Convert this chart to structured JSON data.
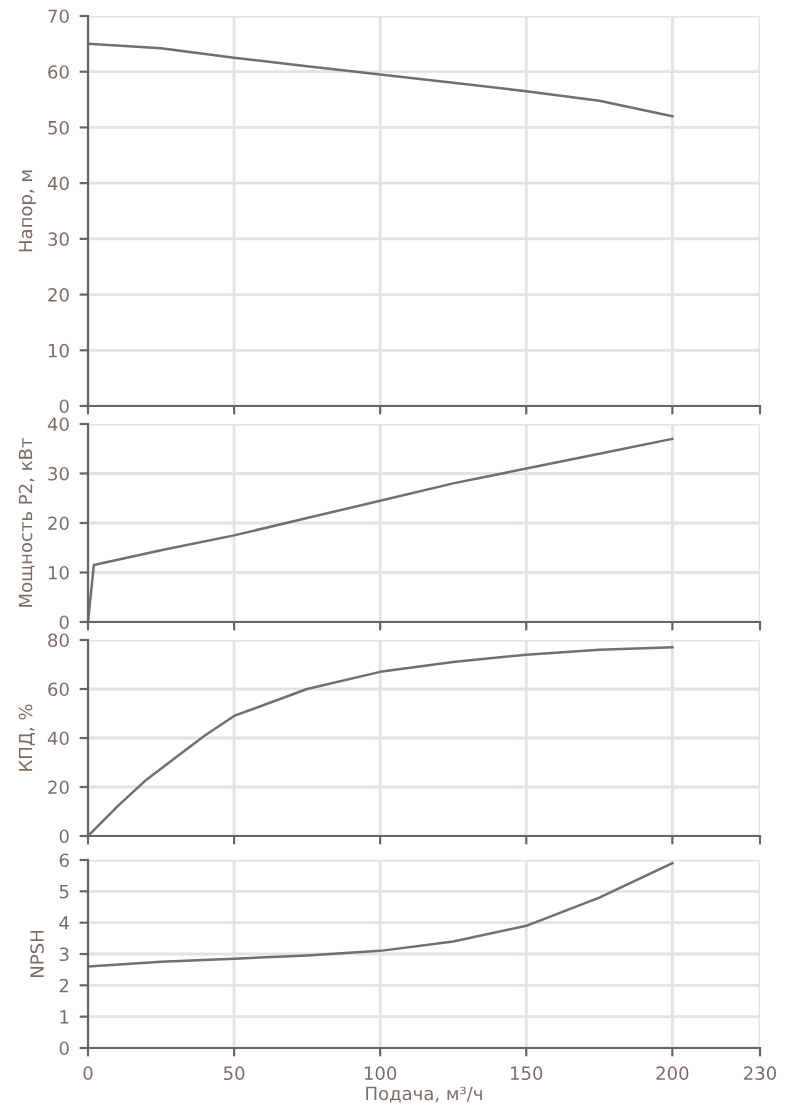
{
  "chart_data": [
    {
      "type": "line",
      "ylabel": "Напор, м",
      "x": [
        0,
        25,
        50,
        75,
        100,
        125,
        150,
        175,
        200
      ],
      "series": [
        {
          "color": "#707070",
          "values": [
            65,
            64.2,
            62.5,
            61,
            59.5,
            58,
            56.5,
            54.8,
            52
          ]
        }
      ],
      "xlim": [
        0,
        230
      ],
      "xticks": [
        0,
        50,
        100,
        150,
        200,
        230
      ],
      "ylim": [
        0,
        70
      ],
      "yticks": [
        0,
        10,
        20,
        30,
        40,
        50,
        60,
        70
      ],
      "grid": true,
      "tick_labels": "y"
    },
    {
      "type": "line",
      "ylabel": "Мощность P2, кВт",
      "x": [
        0,
        2,
        25,
        50,
        75,
        100,
        125,
        150,
        175,
        200
      ],
      "series": [
        {
          "color": "#707070",
          "values": [
            0,
            11.5,
            14.5,
            17.5,
            21,
            24.5,
            28,
            31,
            34,
            37
          ]
        }
      ],
      "xlim": [
        0,
        230
      ],
      "xticks": [
        0,
        50,
        100,
        150,
        200,
        230
      ],
      "ylim": [
        0,
        40
      ],
      "yticks": [
        0,
        10,
        20,
        30,
        40
      ],
      "grid": true,
      "tick_labels": "y"
    },
    {
      "type": "line",
      "ylabel": "КПД, %",
      "x": [
        0,
        10,
        20,
        30,
        40,
        50,
        75,
        100,
        125,
        150,
        175,
        200
      ],
      "series": [
        {
          "color": "#707070",
          "values": [
            0,
            12,
            23,
            32,
            41,
            49,
            60,
            67,
            71,
            74,
            76,
            77
          ]
        }
      ],
      "xlim": [
        0,
        230
      ],
      "xticks": [
        0,
        50,
        100,
        150,
        200,
        230
      ],
      "ylim": [
        0,
        80
      ],
      "yticks": [
        0,
        20,
        40,
        60,
        80
      ],
      "grid": true,
      "tick_labels": "y"
    },
    {
      "type": "line",
      "ylabel": "NPSH",
      "xlabel": "Подача, м³/ч",
      "x": [
        0,
        25,
        50,
        75,
        100,
        125,
        150,
        175,
        200
      ],
      "series": [
        {
          "color": "#707070",
          "values": [
            2.6,
            2.75,
            2.85,
            2.95,
            3.1,
            3.4,
            3.9,
            4.8,
            5.9
          ]
        }
      ],
      "xlim": [
        0,
        230
      ],
      "xticks": [
        0,
        50,
        100,
        150,
        200,
        230
      ],
      "ylim": [
        0,
        6
      ],
      "yticks": [
        0,
        1,
        2,
        3,
        4,
        5,
        6
      ],
      "grid": true
    }
  ]
}
